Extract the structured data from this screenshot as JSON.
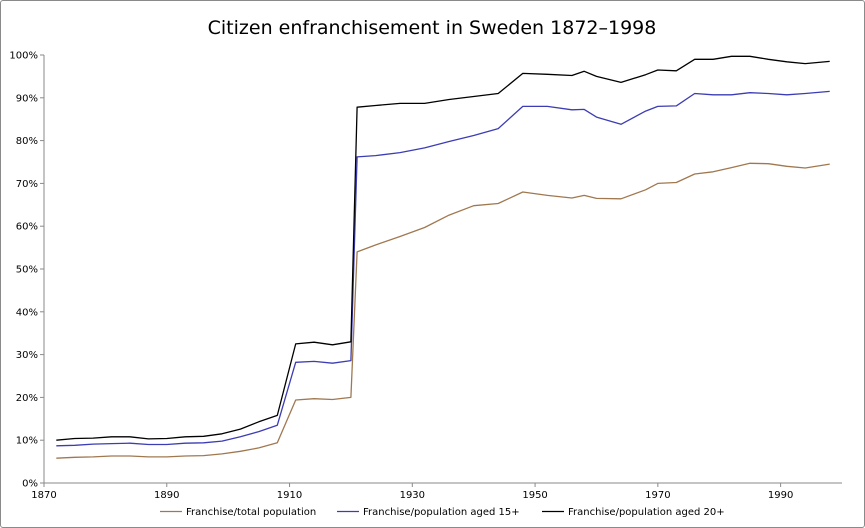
{
  "chart_data": {
    "type": "line",
    "title": "Citizen enfranchisement in Sweden 1872–1998",
    "xlabel": "",
    "ylabel": "",
    "xlim": [
      1870,
      2000
    ],
    "ylim": [
      0,
      100
    ],
    "x_ticks": [
      1870,
      1890,
      1910,
      1930,
      1950,
      1970,
      1990
    ],
    "y_ticks": [
      0,
      10,
      20,
      30,
      40,
      50,
      60,
      70,
      80,
      90,
      100
    ],
    "y_tick_suffix": "%",
    "grid": false,
    "legend_position": "bottom",
    "series": [
      {
        "name": "Franchise/total population",
        "color": "#a07850",
        "points": [
          [
            1872,
            5.8
          ],
          [
            1875,
            6.0
          ],
          [
            1878,
            6.1
          ],
          [
            1881,
            6.3
          ],
          [
            1884,
            6.3
          ],
          [
            1887,
            6.1
          ],
          [
            1890,
            6.1
          ],
          [
            1893,
            6.3
          ],
          [
            1896,
            6.4
          ],
          [
            1899,
            6.8
          ],
          [
            1902,
            7.4
          ],
          [
            1905,
            8.2
          ],
          [
            1908,
            9.4
          ],
          [
            1911,
            19.4
          ],
          [
            1914,
            19.7
          ],
          [
            1917,
            19.5
          ],
          [
            1920,
            20.0
          ],
          [
            1921,
            54.0
          ],
          [
            1924,
            55.6
          ],
          [
            1928,
            57.6
          ],
          [
            1932,
            59.7
          ],
          [
            1936,
            62.6
          ],
          [
            1940,
            64.8
          ],
          [
            1944,
            65.3
          ],
          [
            1948,
            68.0
          ],
          [
            1952,
            67.2
          ],
          [
            1956,
            66.6
          ],
          [
            1958,
            67.2
          ],
          [
            1960,
            66.5
          ],
          [
            1964,
            66.4
          ],
          [
            1968,
            68.5
          ],
          [
            1970,
            70.0
          ],
          [
            1973,
            70.2
          ],
          [
            1976,
            72.2
          ],
          [
            1979,
            72.7
          ],
          [
            1982,
            73.7
          ],
          [
            1985,
            74.7
          ],
          [
            1988,
            74.6
          ],
          [
            1991,
            74.0
          ],
          [
            1994,
            73.6
          ],
          [
            1998,
            74.5
          ]
        ]
      },
      {
        "name": "Franchise/population aged 15+",
        "color": "#3c3cb4",
        "points": [
          [
            1872,
            8.7
          ],
          [
            1875,
            8.8
          ],
          [
            1878,
            9.1
          ],
          [
            1881,
            9.2
          ],
          [
            1884,
            9.3
          ],
          [
            1887,
            9.0
          ],
          [
            1890,
            9.0
          ],
          [
            1893,
            9.3
          ],
          [
            1896,
            9.4
          ],
          [
            1899,
            9.8
          ],
          [
            1902,
            10.8
          ],
          [
            1905,
            12.0
          ],
          [
            1908,
            13.5
          ],
          [
            1911,
            28.2
          ],
          [
            1914,
            28.4
          ],
          [
            1917,
            28.0
          ],
          [
            1920,
            28.6
          ],
          [
            1921,
            76.2
          ],
          [
            1924,
            76.5
          ],
          [
            1928,
            77.2
          ],
          [
            1932,
            78.3
          ],
          [
            1936,
            79.8
          ],
          [
            1940,
            81.2
          ],
          [
            1944,
            82.8
          ],
          [
            1948,
            88.0
          ],
          [
            1952,
            88.0
          ],
          [
            1956,
            87.2
          ],
          [
            1958,
            87.3
          ],
          [
            1960,
            85.5
          ],
          [
            1964,
            83.8
          ],
          [
            1968,
            86.9
          ],
          [
            1970,
            88.0
          ],
          [
            1973,
            88.1
          ],
          [
            1976,
            91.0
          ],
          [
            1979,
            90.7
          ],
          [
            1982,
            90.7
          ],
          [
            1985,
            91.2
          ],
          [
            1988,
            91.0
          ],
          [
            1991,
            90.7
          ],
          [
            1994,
            91.0
          ],
          [
            1998,
            91.5
          ]
        ]
      },
      {
        "name": "Franchise/population aged 20+",
        "color": "#000000",
        "points": [
          [
            1872,
            10.0
          ],
          [
            1875,
            10.4
          ],
          [
            1878,
            10.5
          ],
          [
            1881,
            10.8
          ],
          [
            1884,
            10.8
          ],
          [
            1887,
            10.3
          ],
          [
            1890,
            10.4
          ],
          [
            1893,
            10.8
          ],
          [
            1896,
            10.9
          ],
          [
            1899,
            11.5
          ],
          [
            1902,
            12.6
          ],
          [
            1905,
            14.3
          ],
          [
            1908,
            15.8
          ],
          [
            1911,
            32.5
          ],
          [
            1914,
            32.9
          ],
          [
            1917,
            32.3
          ],
          [
            1920,
            33.0
          ],
          [
            1921,
            87.8
          ],
          [
            1924,
            88.2
          ],
          [
            1928,
            88.7
          ],
          [
            1932,
            88.7
          ],
          [
            1936,
            89.6
          ],
          [
            1940,
            90.3
          ],
          [
            1944,
            91.0
          ],
          [
            1948,
            95.7
          ],
          [
            1952,
            95.5
          ],
          [
            1956,
            95.2
          ],
          [
            1958,
            96.2
          ],
          [
            1960,
            95.0
          ],
          [
            1964,
            93.6
          ],
          [
            1968,
            95.4
          ],
          [
            1970,
            96.5
          ],
          [
            1973,
            96.3
          ],
          [
            1976,
            99.0
          ],
          [
            1979,
            99.0
          ],
          [
            1982,
            99.7
          ],
          [
            1985,
            99.7
          ],
          [
            1988,
            99.0
          ],
          [
            1991,
            98.4
          ],
          [
            1994,
            98.0
          ],
          [
            1998,
            98.5
          ]
        ]
      }
    ]
  }
}
